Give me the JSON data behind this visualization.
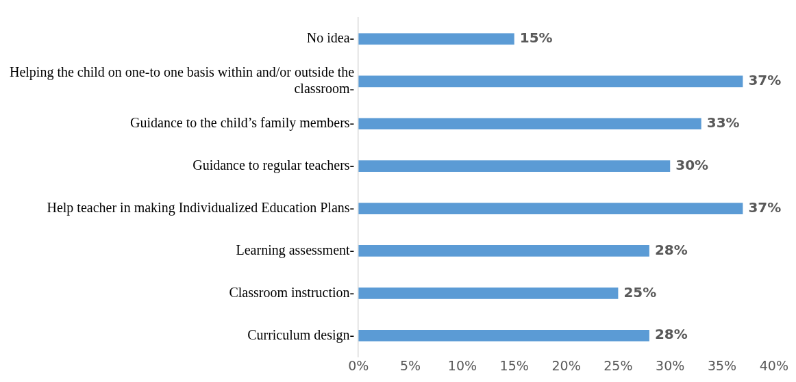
{
  "chart_data": {
    "type": "bar",
    "orientation": "horizontal",
    "categories": [
      "No idea-",
      "Helping the child on one-to one basis within and/or outside the classroom-",
      "Guidance to the child’s family members-",
      "Guidance to regular teachers-",
      "Help teacher in making Individualized Education Plans-",
      "Learning assessment-",
      "Classroom instruction-",
      "Curriculum design-"
    ],
    "values": [
      15,
      37,
      33,
      30,
      37,
      28,
      25,
      28
    ],
    "value_labels": [
      "15%",
      "37%",
      "33%",
      "30%",
      "37%",
      "28%",
      "25%",
      "28%"
    ],
    "color": "#5b9bd5",
    "xlim": [
      0,
      40
    ],
    "xticks": [
      {
        "value": 0,
        "label": "0%"
      },
      {
        "value": 5,
        "label": "5%"
      },
      {
        "value": 10,
        "label": "10%"
      },
      {
        "value": 15,
        "label": "15%"
      },
      {
        "value": 20,
        "label": "20%"
      },
      {
        "value": 25,
        "label": "25%"
      },
      {
        "value": 30,
        "label": "30%"
      },
      {
        "value": 35,
        "label": "35%"
      },
      {
        "value": 40,
        "label": "40%"
      }
    ],
    "grid": false,
    "legend": false
  }
}
